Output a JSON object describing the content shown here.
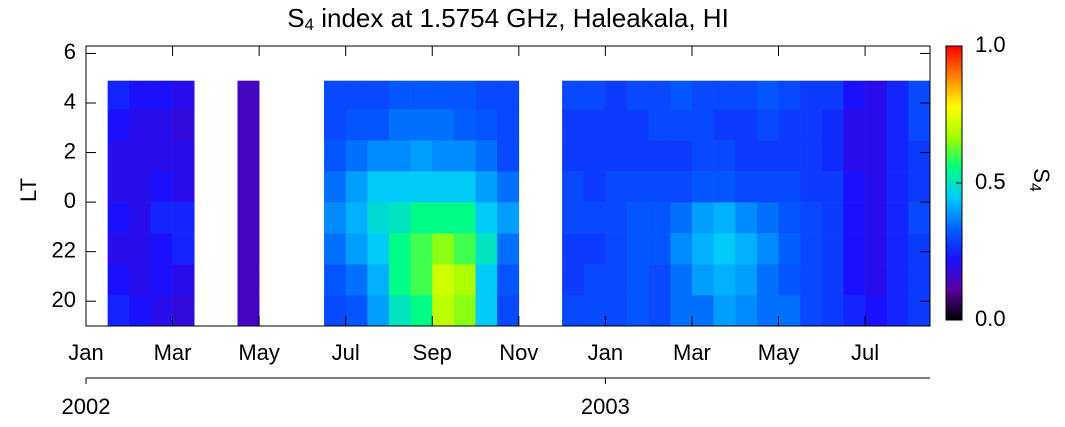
{
  "chart_data": {
    "type": "heatmap",
    "title": {
      "base": "S",
      "sub": "4",
      "rest": " index at 1.5754 GHz, Haleakala, HI"
    },
    "ylabel": "LT",
    "colorbar_label": {
      "base": "S",
      "sub": "4"
    },
    "xlim": [
      0,
      19.5
    ],
    "xticks": [
      {
        "value": 0,
        "label": "Jan"
      },
      {
        "value": 2,
        "label": "Mar"
      },
      {
        "value": 4,
        "label": "May"
      },
      {
        "value": 6,
        "label": "Jul"
      },
      {
        "value": 8,
        "label": "Sep"
      },
      {
        "value": 10,
        "label": "Nov"
      },
      {
        "value": 12,
        "label": "Jan"
      },
      {
        "value": 14,
        "label": "Mar"
      },
      {
        "value": 16,
        "label": "May"
      },
      {
        "value": 18,
        "label": "Jul"
      }
    ],
    "year_ticks": [
      {
        "value": 0,
        "label": "2002"
      },
      {
        "value": 12,
        "label": "2003"
      }
    ],
    "ylim": [
      19,
      30.3
    ],
    "yticks": [
      20,
      22,
      {
        "value": 24,
        "label": "0"
      },
      {
        "value": 26,
        "label": "2"
      },
      {
        "value": 28,
        "label": "4"
      },
      {
        "value": 30,
        "label": "6"
      }
    ],
    "clim": [
      0,
      1
    ],
    "cticks": [
      {
        "value": 0,
        "label": "0.0"
      },
      0.5,
      {
        "value": 1,
        "label": "1.0"
      }
    ],
    "colormap": [
      "#000000",
      "#5a00a0",
      "#1a10ff",
      "#0060ff",
      "#00c8ff",
      "#00ff80",
      "#a0ff00",
      "#ffff00",
      "#ff8000",
      "#ff0000"
    ],
    "xbins": [
      0.5,
      1,
      1.5,
      2,
      2.5,
      3,
      3.5,
      4,
      4.5,
      5,
      5.5,
      6,
      6.5,
      7,
      7.5,
      8,
      8.5,
      9,
      9.5,
      10,
      10.5,
      11,
      11.5,
      12,
      12.5,
      13,
      13.5,
      14,
      14.5,
      15,
      15.5,
      16,
      16.5,
      17,
      17.5,
      18,
      18.5,
      19,
      19.5
    ],
    "ybins": [
      19,
      20.25,
      21.5,
      22.75,
      24,
      25.25,
      26.5,
      27.75,
      28.9
    ],
    "z": [
      [
        0.25,
        0.22,
        0.2,
        0.18,
        null,
        null,
        0.15,
        null,
        null,
        null,
        0.3,
        0.32,
        0.4,
        0.5,
        0.55,
        0.7,
        0.65,
        0.45,
        0.3,
        null,
        null,
        0.3,
        0.3,
        0.3,
        0.32,
        0.3,
        0.35,
        0.35,
        0.4,
        0.38,
        0.35,
        0.35,
        0.3,
        0.28,
        0.25,
        0.22,
        0.25,
        0.28
      ],
      [
        0.22,
        0.2,
        0.22,
        0.2,
        null,
        null,
        0.15,
        null,
        null,
        null,
        0.32,
        0.35,
        0.42,
        0.55,
        0.6,
        0.72,
        0.68,
        0.45,
        0.32,
        null,
        null,
        0.28,
        0.3,
        0.3,
        0.32,
        0.3,
        0.35,
        0.4,
        0.42,
        0.4,
        0.35,
        0.32,
        0.3,
        0.28,
        0.22,
        0.2,
        0.25,
        0.28
      ],
      [
        0.2,
        0.2,
        0.22,
        0.25,
        null,
        null,
        0.15,
        null,
        null,
        null,
        0.35,
        0.4,
        0.45,
        0.55,
        0.6,
        0.65,
        0.6,
        0.5,
        0.35,
        null,
        null,
        0.28,
        0.28,
        0.3,
        0.32,
        0.32,
        0.38,
        0.42,
        0.45,
        0.42,
        0.38,
        0.33,
        0.3,
        0.28,
        0.22,
        0.2,
        0.25,
        0.28
      ],
      [
        0.22,
        0.2,
        0.25,
        0.25,
        null,
        null,
        0.15,
        null,
        null,
        null,
        0.38,
        0.42,
        0.48,
        0.5,
        0.55,
        0.55,
        0.55,
        0.45,
        0.4,
        null,
        null,
        0.3,
        0.3,
        0.3,
        0.32,
        0.32,
        0.35,
        0.4,
        0.42,
        0.38,
        0.35,
        0.32,
        0.3,
        0.28,
        0.22,
        0.2,
        0.25,
        0.3
      ],
      [
        0.2,
        0.2,
        0.22,
        0.2,
        null,
        null,
        0.15,
        null,
        null,
        null,
        0.35,
        0.4,
        0.45,
        0.45,
        0.45,
        0.45,
        0.45,
        0.4,
        0.35,
        null,
        null,
        0.3,
        0.28,
        0.3,
        0.3,
        0.3,
        0.3,
        0.32,
        0.32,
        0.3,
        0.3,
        0.3,
        0.28,
        0.28,
        0.22,
        0.2,
        0.25,
        0.28
      ],
      [
        0.2,
        0.2,
        0.2,
        0.2,
        null,
        null,
        0.15,
        null,
        null,
        null,
        0.32,
        0.35,
        0.38,
        0.38,
        0.4,
        0.38,
        0.38,
        0.35,
        0.3,
        null,
        null,
        0.28,
        0.28,
        0.28,
        0.28,
        0.28,
        0.28,
        0.3,
        0.3,
        0.28,
        0.28,
        0.28,
        0.28,
        0.26,
        0.2,
        0.2,
        0.25,
        0.28
      ],
      [
        0.22,
        0.2,
        0.2,
        0.18,
        null,
        null,
        0.15,
        null,
        null,
        null,
        0.3,
        0.32,
        0.32,
        0.35,
        0.35,
        0.35,
        0.33,
        0.32,
        0.3,
        null,
        null,
        0.28,
        0.28,
        0.28,
        0.28,
        0.3,
        0.3,
        0.3,
        0.28,
        0.28,
        0.3,
        0.28,
        0.28,
        0.26,
        0.2,
        0.2,
        0.25,
        0.3
      ],
      [
        0.25,
        0.22,
        0.22,
        0.2,
        null,
        null,
        0.15,
        null,
        null,
        null,
        0.3,
        0.3,
        0.3,
        0.32,
        0.32,
        0.32,
        0.32,
        0.3,
        0.3,
        null,
        null,
        0.3,
        0.3,
        0.28,
        0.3,
        0.3,
        0.32,
        0.3,
        0.3,
        0.3,
        0.32,
        0.3,
        0.28,
        0.28,
        0.22,
        0.2,
        0.25,
        0.3
      ]
    ]
  }
}
